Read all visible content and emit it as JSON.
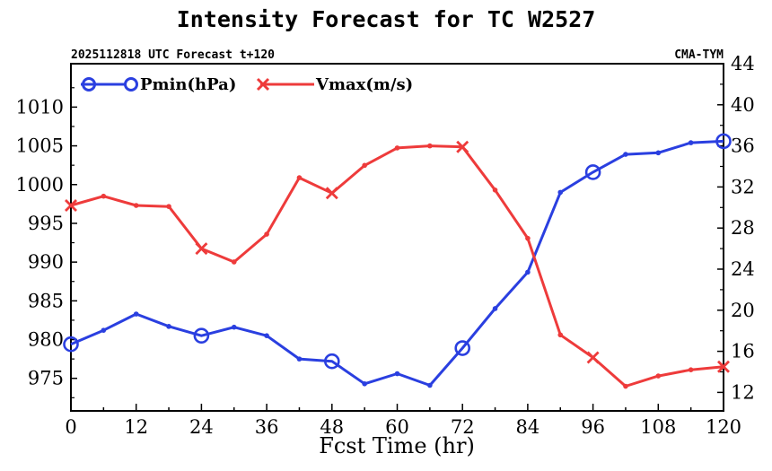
{
  "chart_data": {
    "type": "line",
    "title": "Intensity Forecast for TC W2527",
    "subtitle_left": "2025112818 UTC Forecast t+120",
    "subtitle_right": "CMA-TYM",
    "xlabel": "Fcst Time (hr)",
    "ylabel_left": "",
    "ylabel_right": "",
    "x": [
      0,
      6,
      12,
      18,
      24,
      30,
      36,
      42,
      48,
      54,
      60,
      66,
      72,
      78,
      84,
      90,
      96,
      102,
      108,
      114,
      120
    ],
    "xlim": [
      0,
      120
    ],
    "x_ticks": [
      0,
      12,
      24,
      36,
      48,
      60,
      72,
      84,
      96,
      108,
      120
    ],
    "x_tick_labels": [
      "0",
      "12",
      "24",
      "36",
      "48",
      "60",
      "72",
      "84",
      "96",
      "108",
      "120"
    ],
    "ylim_left": [
      970.8,
      1015.6
    ],
    "y_left_ticks": [
      975,
      980,
      985,
      990,
      995,
      1000,
      1005,
      1010
    ],
    "y_left_tick_labels": [
      "975",
      "980",
      "985",
      "990",
      "995",
      "1000",
      "1005",
      "1010"
    ],
    "ylim_right": [
      10.2,
      44
    ],
    "y_right_ticks": [
      12,
      16,
      20,
      24,
      28,
      32,
      36,
      40,
      44
    ],
    "y_right_tick_labels": [
      "12",
      "16",
      "20",
      "24",
      "28",
      "32",
      "36",
      "40",
      "44"
    ],
    "grid": false,
    "legend_position": "top-left",
    "series": [
      {
        "name": "Pmin(hPa)",
        "axis": "left",
        "color": "#2a3fe0",
        "marker": "circle-every-24h",
        "values": [
          979.4,
          981.2,
          983.3,
          981.7,
          980.5,
          981.6,
          980.5,
          977.5,
          977.2,
          974.3,
          975.6,
          974.1,
          978.9,
          984.0,
          988.7,
          999.0,
          1001.6,
          1003.9,
          1004.1,
          1005.4,
          1005.6
        ]
      },
      {
        "name": "Vmax(m/s)",
        "axis": "right",
        "color": "#ee3b3b",
        "marker": "x-every-24h",
        "values": [
          30.2,
          31.1,
          30.2,
          30.1,
          26.0,
          24.7,
          27.4,
          32.9,
          31.4,
          34.1,
          35.8,
          36.0,
          35.9,
          31.7,
          27.0,
          17.6,
          15.4,
          12.6,
          13.6,
          14.2,
          14.5
        ]
      }
    ]
  }
}
